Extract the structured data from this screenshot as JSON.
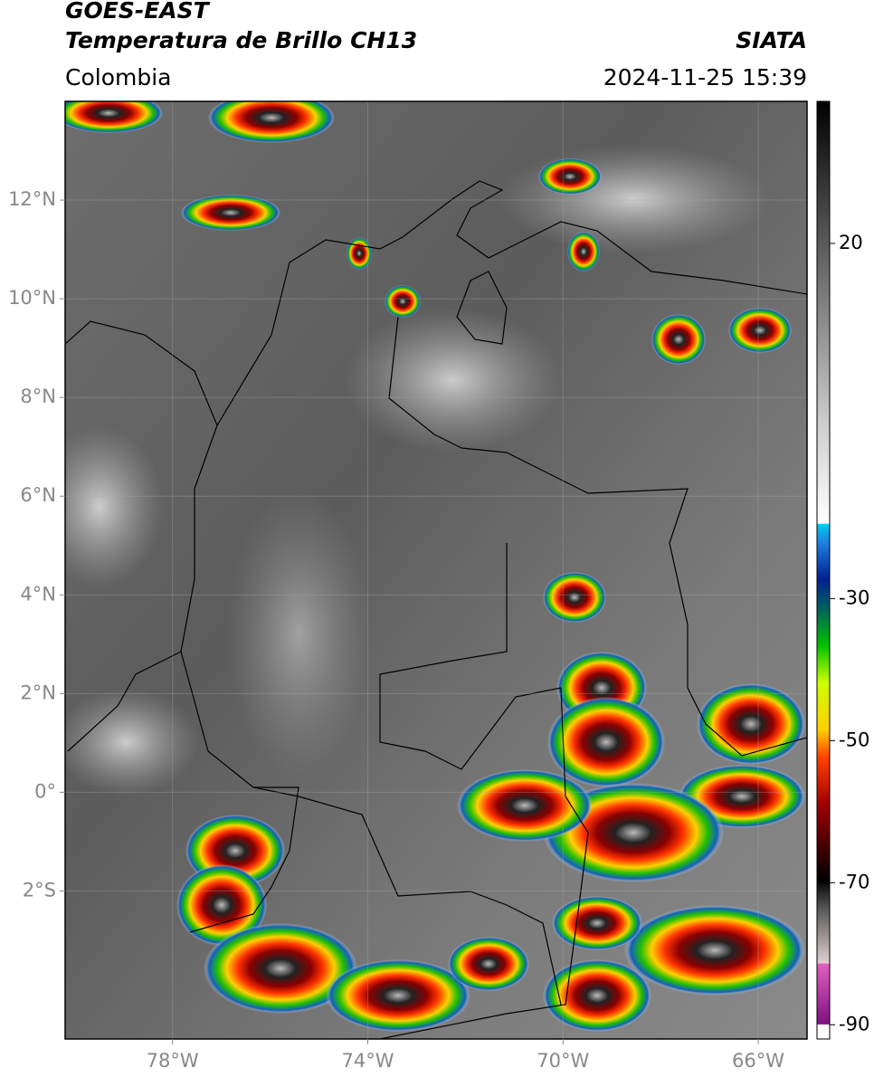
{
  "header": {
    "title": "GOES-EAST",
    "subtitle": "Temperatura de Brillo CH13",
    "organization": "SIATA",
    "region": "Colombia",
    "timestamp": "2024-11-25 15:39"
  },
  "map": {
    "xlim": [
      -80.2,
      -65
    ],
    "ylim": [
      -5,
      14
    ],
    "xticks": [
      {
        "value": -78,
        "label": "78°W"
      },
      {
        "value": -74,
        "label": "74°W"
      },
      {
        "value": -70,
        "label": "70°W"
      },
      {
        "value": -66,
        "label": "66°W"
      }
    ],
    "yticks": [
      {
        "value": 12,
        "label": "12°N"
      },
      {
        "value": 10,
        "label": "10°N"
      },
      {
        "value": 8,
        "label": "8°N"
      },
      {
        "value": 6,
        "label": "6°N"
      },
      {
        "value": 4,
        "label": "4°N"
      },
      {
        "value": 2,
        "label": "2°N"
      },
      {
        "value": 0,
        "label": "0°"
      },
      {
        "value": -2,
        "label": "2°S"
      }
    ],
    "grid": true
  },
  "colorbar": {
    "lim": [
      -92,
      40
    ],
    "ticks": [
      20,
      -30,
      -50,
      -70,
      -90
    ]
  }
}
